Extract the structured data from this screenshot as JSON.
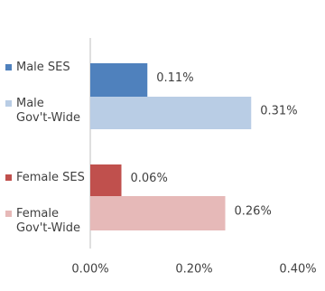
{
  "chart_data": {
    "type": "bar",
    "orientation": "horizontal",
    "categories": [
      "Male SES",
      "Male\nGov't-Wide",
      "Female SES",
      "Female\nGov't-Wide"
    ],
    "values": [
      0.11,
      0.31,
      0.06,
      0.26
    ],
    "value_labels": [
      "0.11%",
      "0.31%",
      "0.06%",
      "0.26%"
    ],
    "colors": [
      "#4f81bd",
      "#b9cde5",
      "#c0504d",
      "#e6b9b8"
    ],
    "xlim": [
      0,
      0.4
    ],
    "xticks": [
      {
        "value": 0,
        "label": "0.00%"
      },
      {
        "value": 0.2,
        "label": "0.20%"
      },
      {
        "value": 0.4,
        "label": "0.40%"
      }
    ],
    "grid": false
  }
}
